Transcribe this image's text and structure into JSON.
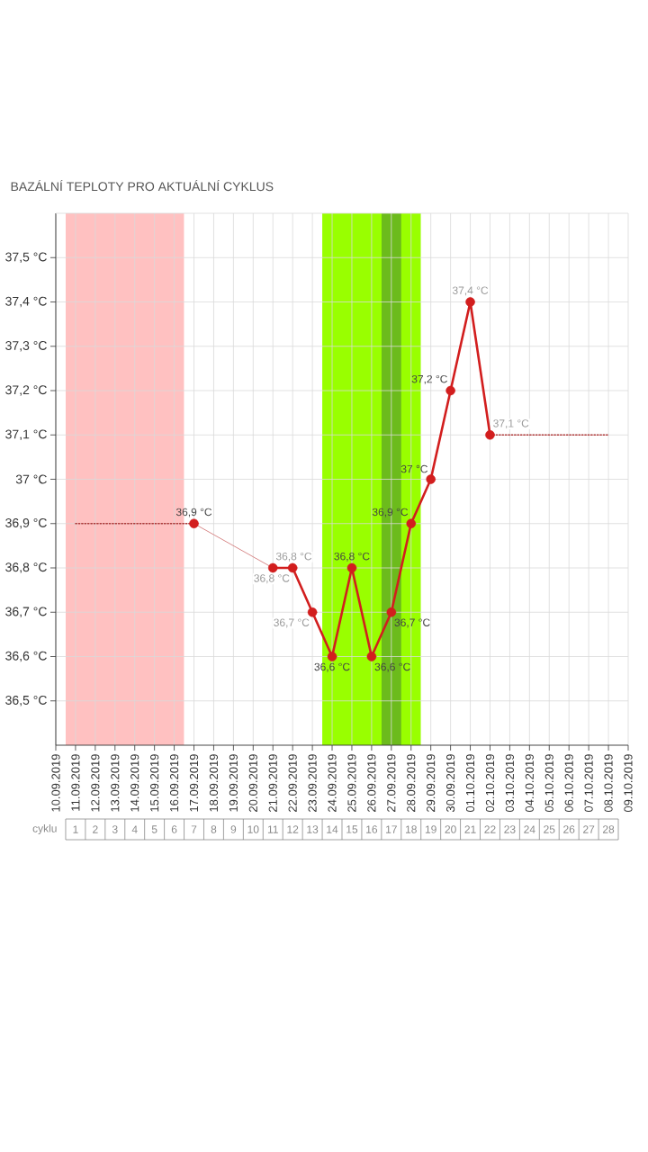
{
  "chart_data": {
    "type": "line",
    "title": "BAZÁLNÍ TEPLOTY PRO AKTUÁLNÍ CYKLUS",
    "xlim": [
      "2019-09-10",
      "2019-10-09"
    ],
    "xticks": [
      {
        "value": "2019-09-10",
        "label": "10.09.2019"
      },
      {
        "value": "2019-09-11",
        "label": "11.09.2019"
      },
      {
        "value": "2019-09-12",
        "label": "12.09.2019"
      },
      {
        "value": "2019-09-13",
        "label": "13.09.2019"
      },
      {
        "value": "2019-09-14",
        "label": "14.09.2019"
      },
      {
        "value": "2019-09-15",
        "label": "15.09.2019"
      },
      {
        "value": "2019-09-16",
        "label": "16.09.2019"
      },
      {
        "value": "2019-09-17",
        "label": "17.09.2019"
      },
      {
        "value": "2019-09-18",
        "label": "18.09.2019"
      },
      {
        "value": "2019-09-19",
        "label": "19.09.2019"
      },
      {
        "value": "2019-09-20",
        "label": "20.09.2019"
      },
      {
        "value": "2019-09-21",
        "label": "21.09.2019"
      },
      {
        "value": "2019-09-22",
        "label": "22.09.2019"
      },
      {
        "value": "2019-09-23",
        "label": "23.09.2019"
      },
      {
        "value": "2019-09-24",
        "label": "24.09.2019"
      },
      {
        "value": "2019-09-25",
        "label": "25.09.2019"
      },
      {
        "value": "2019-09-26",
        "label": "26.09.2019"
      },
      {
        "value": "2019-09-27",
        "label": "27.09.2019"
      },
      {
        "value": "2019-09-28",
        "label": "28.09.2019"
      },
      {
        "value": "2019-09-29",
        "label": "29.09.2019"
      },
      {
        "value": "2019-09-30",
        "label": "30.09.2019"
      },
      {
        "value": "2019-10-01",
        "label": "01.10.2019"
      },
      {
        "value": "2019-10-02",
        "label": "02.10.2019"
      },
      {
        "value": "2019-10-03",
        "label": "03.10.2019"
      },
      {
        "value": "2019-10-04",
        "label": "04.10.2019"
      },
      {
        "value": "2019-10-05",
        "label": "05.10.2019"
      },
      {
        "value": "2019-10-06",
        "label": "06.10.2019"
      },
      {
        "value": "2019-10-07",
        "label": "07.10.2019"
      },
      {
        "value": "2019-10-08",
        "label": "08.10.2019"
      },
      {
        "value": "2019-10-09",
        "label": "09.10.2019"
      }
    ],
    "ylim": [
      36.4,
      37.6
    ],
    "yticks": [
      {
        "value": 36.5,
        "label": "36,5 °C"
      },
      {
        "value": 36.6,
        "label": "36,6 °C"
      },
      {
        "value": 36.7,
        "label": "36,7 °C"
      },
      {
        "value": 36.8,
        "label": "36,8 °C"
      },
      {
        "value": 36.9,
        "label": "36,9 °C"
      },
      {
        "value": 37.0,
        "label": "37 °C"
      },
      {
        "value": 37.1,
        "label": "37,1 °C"
      },
      {
        "value": 37.2,
        "label": "37,2 °C"
      },
      {
        "value": 37.3,
        "label": "37,3 °C"
      },
      {
        "value": 37.4,
        "label": "37,4 °C"
      },
      {
        "value": 37.5,
        "label": "37,5 °C"
      }
    ],
    "x2lim": [
      0.5,
      28.5
    ],
    "x2ticks": [
      1,
      2,
      3,
      4,
      5,
      6,
      7,
      8,
      9,
      10,
      11,
      12,
      13,
      14,
      15,
      16,
      17,
      18,
      19,
      20,
      21,
      22,
      23,
      24,
      25,
      26,
      27,
      28
    ],
    "x2label": "cyklu",
    "grid": true,
    "bands": [
      {
        "axis": "x",
        "from": "2019-09-10T12:00",
        "to": "2019-09-16T12:00",
        "color": "#ffc1c1"
      },
      {
        "axis": "x",
        "from": "2019-09-23T12:00",
        "to": "2019-09-28T12:00",
        "color": "#99ff00"
      },
      {
        "axis": "x",
        "from": "2019-09-26T12:00",
        "to": "2019-09-27T12:00",
        "color": "#6cbb1c"
      }
    ],
    "series": [
      {
        "color": "#b03a3a",
        "line_style": "dotted",
        "x": [
          "2019-09-11",
          "2019-09-17"
        ],
        "values": [
          36.9,
          36.9
        ]
      },
      {
        "color": "#b03a3a",
        "line_style": "dotted",
        "x": [
          "2019-10-02",
          "2019-10-08"
        ],
        "values": [
          37.1,
          37.1
        ]
      },
      {
        "color": "#d88a8a",
        "x": [
          "2019-09-17",
          "2019-09-21"
        ],
        "values": [
          36.9,
          36.8
        ]
      },
      {
        "color": "#d21e1e",
        "marker": "circle",
        "x": [
          "2019-09-17",
          "2019-09-18",
          "2019-09-19",
          "2019-09-20",
          "2019-09-21",
          "2019-09-22",
          "2019-09-23",
          "2019-09-24",
          "2019-09-25",
          "2019-09-26",
          "2019-09-27",
          "2019-09-28",
          "2019-09-29",
          "2019-09-30",
          "2019-10-01",
          "2019-10-02"
        ],
        "values": [
          36.9,
          null,
          null,
          null,
          36.8,
          36.8,
          36.7,
          36.6,
          36.8,
          36.6,
          36.7,
          36.9,
          37.0,
          37.2,
          37.4,
          37.1
        ],
        "value_labels": [
          "36,9 °C",
          null,
          null,
          null,
          "36,8 °C",
          "36,8 °C",
          "36,7 °C",
          "36,6 °C",
          "36,8 °C",
          "36,6 °C",
          "36,7 °C",
          "36,9 °C",
          "37 °C",
          "37,2 °C",
          "37,4 °C",
          "37,1 °C"
        ]
      }
    ]
  }
}
